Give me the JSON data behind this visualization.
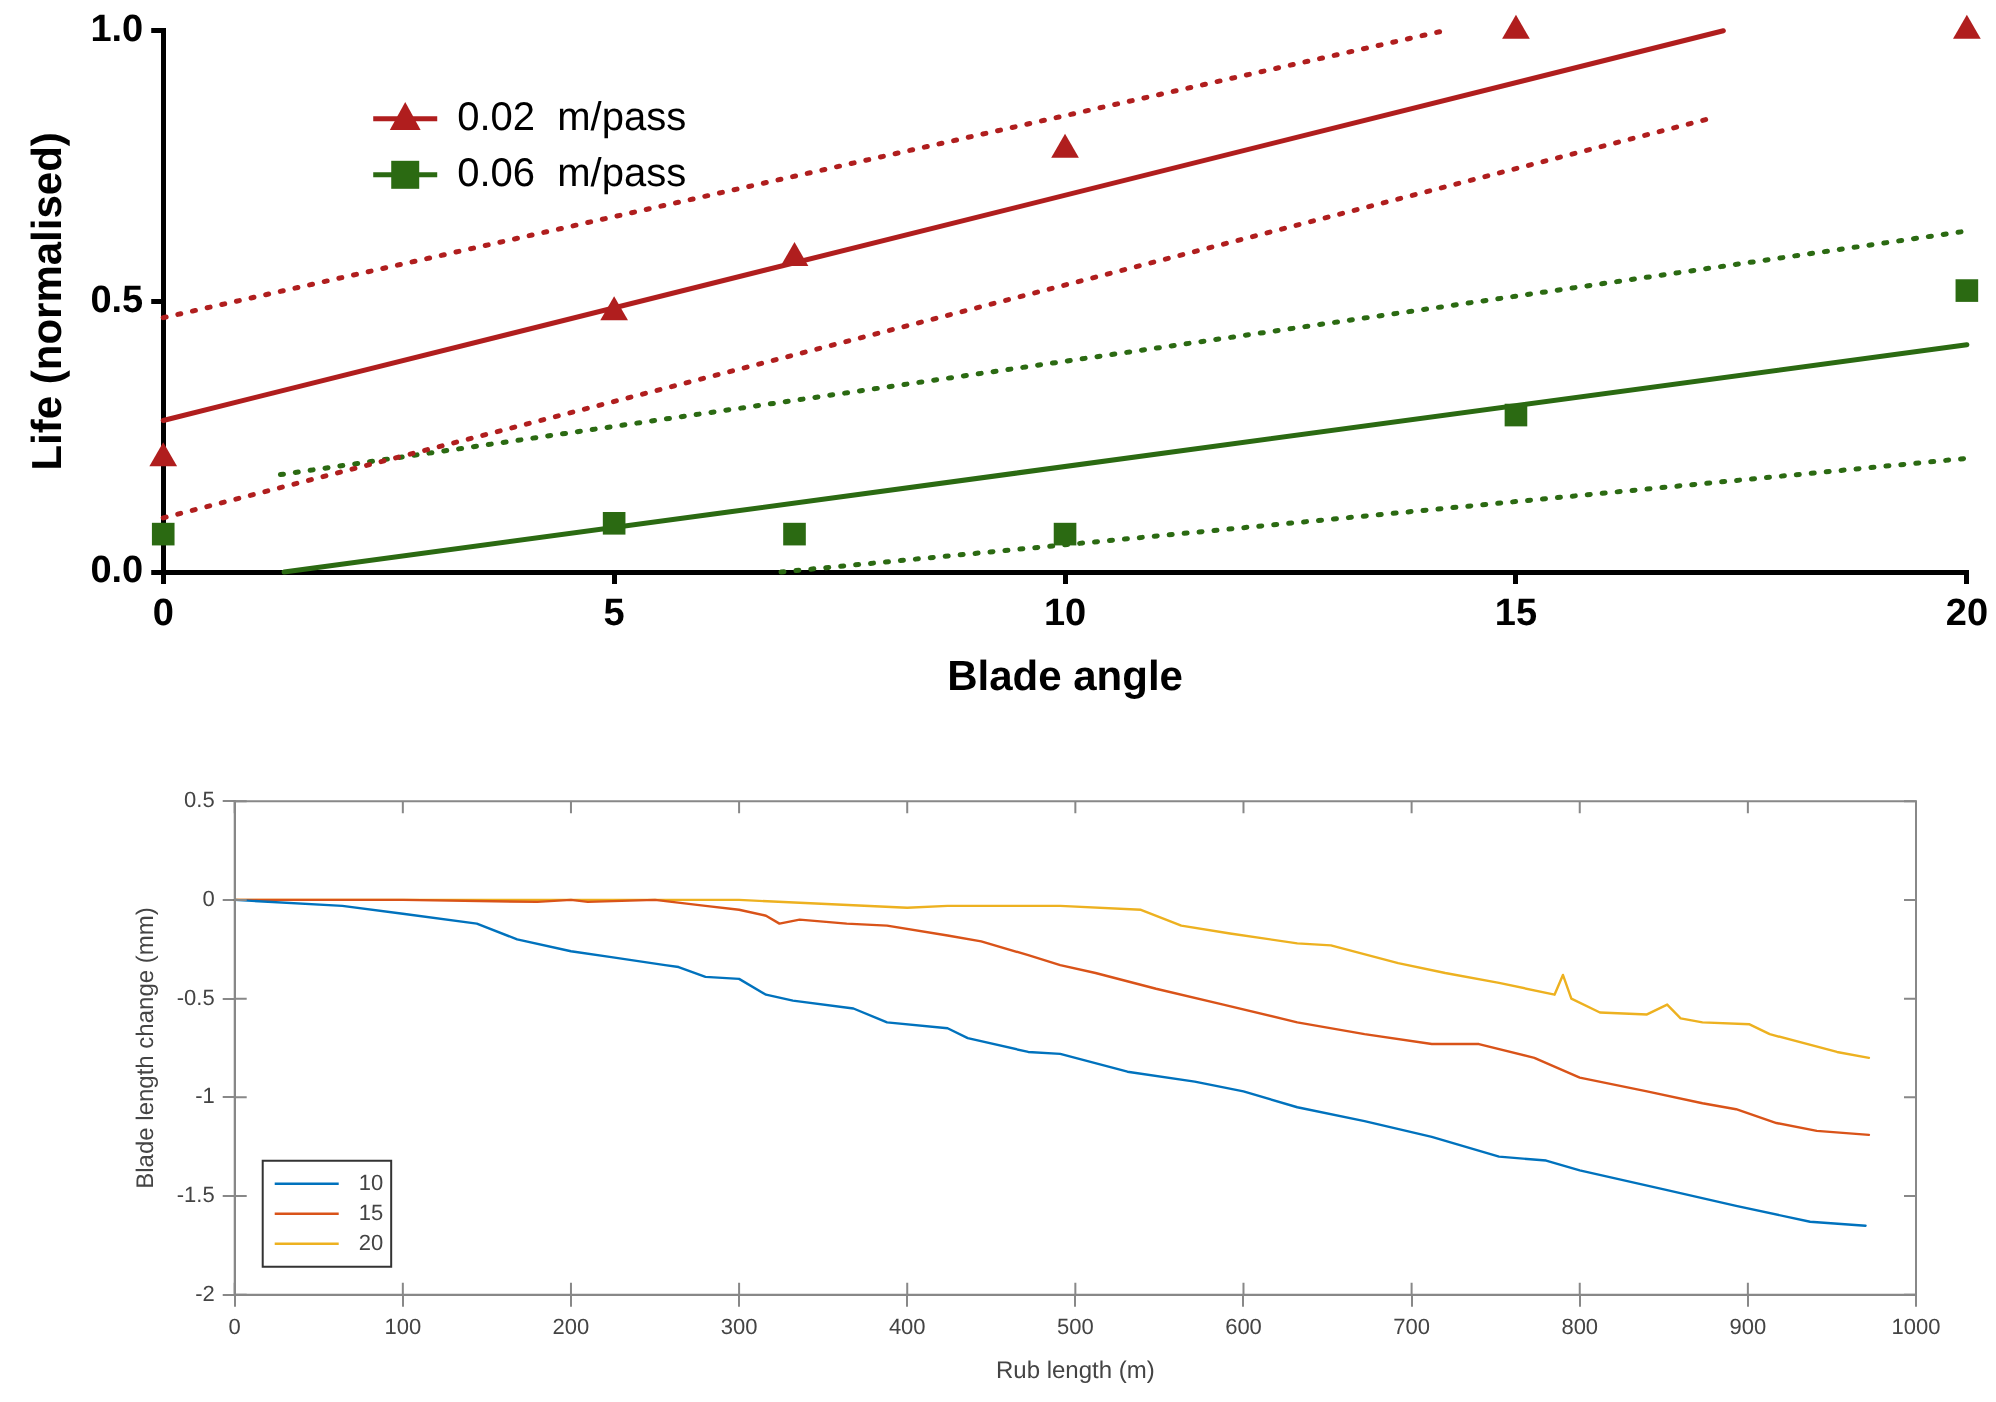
{
  "chart_data": [
    {
      "type": "scatter",
      "xlabel": "Blade angle",
      "ylabel": "Life (normalised)",
      "xlim": [
        0,
        20
      ],
      "xticks": [
        0,
        5,
        10,
        15,
        20
      ],
      "ylim": [
        0,
        1
      ],
      "yticks": [
        {
          "value": 0,
          "label": "0.0"
        },
        {
          "value": 0.5,
          "label": "0.5"
        },
        {
          "value": 1,
          "label": "1.0"
        }
      ],
      "grid": false,
      "legend": "top left",
      "series": [
        {
          "name": "0.02  m/pass",
          "marker": "triangle",
          "color": "#b01e1e",
          "x": [
            0,
            5,
            7,
            10,
            15,
            20
          ],
          "values": [
            0.21,
            0.48,
            0.58,
            0.78,
            1.0,
            1.0
          ]
        },
        {
          "type": "line",
          "marker": "none",
          "line_style": "solid",
          "color": "#b01e1e",
          "x": [
            0,
            17.3
          ],
          "values": [
            0.28,
            1.0
          ]
        },
        {
          "type": "line",
          "marker": "none",
          "line_style": "dotted",
          "color": "#b01e1e",
          "x": [
            0,
            14.2
          ],
          "values": [
            0.47,
            1.0
          ]
        },
        {
          "type": "line",
          "marker": "none",
          "line_style": "dotted",
          "color": "#b01e1e",
          "x": [
            0,
            17.2
          ],
          "values": [
            0.1,
            0.84
          ]
        },
        {
          "name": "0.06  m/pass",
          "marker": "square",
          "color": "#2b6a12",
          "x": [
            0,
            5,
            7,
            10,
            15,
            20
          ],
          "values": [
            0.07,
            0.09,
            0.07,
            0.07,
            0.29,
            0.52
          ]
        },
        {
          "type": "line",
          "marker": "none",
          "line_style": "solid",
          "color": "#2b6a12",
          "x": [
            1.34,
            20
          ],
          "values": [
            0,
            0.42
          ]
        },
        {
          "type": "line",
          "marker": "none",
          "line_style": "dotted",
          "color": "#2b6a12",
          "x": [
            1.3,
            20
          ],
          "values": [
            0.18,
            0.63
          ]
        },
        {
          "type": "line",
          "marker": "none",
          "line_style": "dotted",
          "color": "#2b6a12",
          "x": [
            6.85,
            20
          ],
          "values": [
            0,
            0.21
          ]
        }
      ]
    },
    {
      "type": "line",
      "xlabel": "Rub length (m)",
      "ylabel": "Blade length change (mm)",
      "xlim": [
        0,
        1000
      ],
      "xticks": [
        0,
        100,
        200,
        300,
        400,
        500,
        600,
        700,
        800,
        900,
        1000
      ],
      "ylim": [
        -2,
        0.5
      ],
      "yticks": [
        -2,
        -1.5,
        -1,
        -0.5,
        0,
        0.5
      ],
      "grid": false,
      "legend": "bottom left",
      "marker": "none",
      "line_style": "solid",
      "series": [
        {
          "name": "10",
          "color": "#0072bd",
          "x": [
            0,
            64,
            100,
            144,
            168,
            200,
            224,
            256,
            264,
            280,
            300,
            316,
            332,
            368,
            388,
            424,
            436,
            472,
            491,
            531,
            571,
            600,
            632,
            672,
            712,
            752,
            780,
            800,
            852,
            893,
            937,
            970
          ],
          "values": [
            0,
            -0.03,
            -0.07,
            -0.12,
            -0.2,
            -0.26,
            -0.29,
            -0.33,
            -0.34,
            -0.39,
            -0.4,
            -0.48,
            -0.51,
            -0.55,
            -0.62,
            -0.65,
            -0.7,
            -0.77,
            -0.78,
            -0.87,
            -0.92,
            -0.97,
            -1.05,
            -1.12,
            -1.2,
            -1.3,
            -1.32,
            -1.37,
            -1.47,
            -1.55,
            -1.63,
            -1.65
          ]
        },
        {
          "name": "15",
          "color": "#d95319",
          "x": [
            0,
            100,
            180,
            200,
            210,
            250,
            280,
            300,
            316,
            324,
            336,
            364,
            388,
            424,
            444,
            472,
            491,
            512,
            548,
            588,
            632,
            672,
            712,
            740,
            773,
            800,
            840,
            873,
            893,
            917,
            941,
            972
          ],
          "values": [
            0,
            0,
            -0.01,
            0,
            -0.01,
            0,
            -0.03,
            -0.05,
            -0.08,
            -0.12,
            -0.1,
            -0.12,
            -0.13,
            -0.18,
            -0.21,
            -0.28,
            -0.33,
            -0.37,
            -0.45,
            -0.53,
            -0.62,
            -0.68,
            -0.73,
            -0.73,
            -0.8,
            -0.9,
            -0.97,
            -1.03,
            -1.06,
            -1.13,
            -1.17,
            -1.19
          ]
        },
        {
          "name": "20",
          "color": "#edb120",
          "x": [
            0,
            100,
            200,
            300,
            400,
            424,
            491,
            539,
            563,
            592,
            632,
            652,
            692,
            720,
            752,
            785,
            790,
            795,
            812,
            840,
            852,
            860,
            873,
            901,
            913,
            953,
            972
          ],
          "values": [
            0,
            0,
            0,
            0,
            -0.04,
            -0.03,
            -0.03,
            -0.05,
            -0.13,
            -0.17,
            -0.22,
            -0.23,
            -0.32,
            -0.37,
            -0.42,
            -0.48,
            -0.38,
            -0.5,
            -0.57,
            -0.58,
            -0.53,
            -0.6,
            -0.62,
            -0.63,
            -0.68,
            -0.77,
            -0.8
          ]
        }
      ]
    }
  ]
}
